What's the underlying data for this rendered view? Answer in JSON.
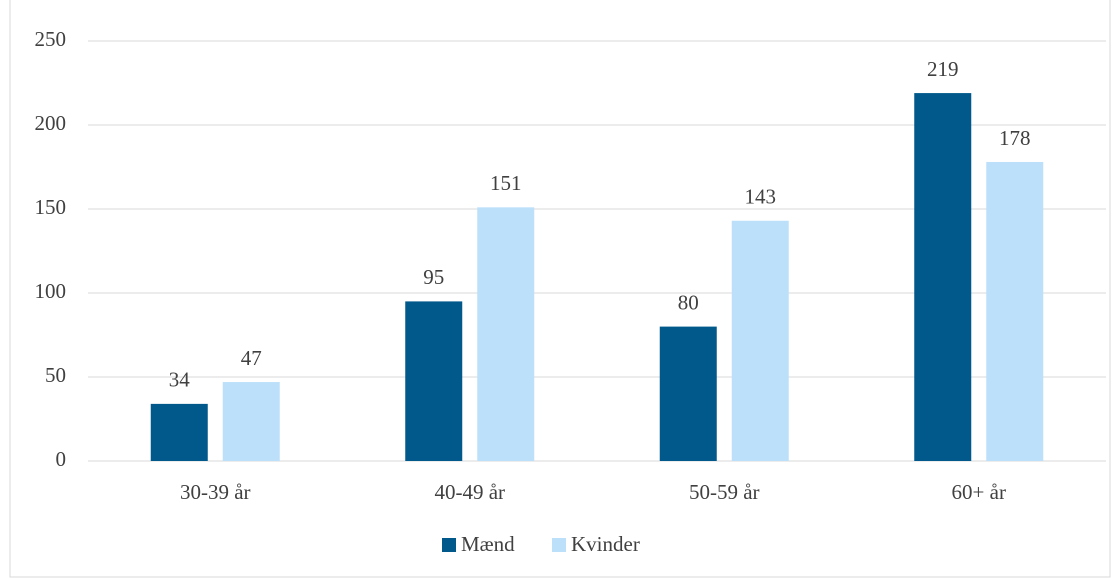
{
  "chart_data": {
    "type": "bar",
    "categories": [
      "30-39 år",
      "40-49 år",
      "50-59 år",
      "60+ år"
    ],
    "series": [
      {
        "name": "Mænd",
        "color": "#00598a",
        "values": [
          34,
          95,
          80,
          219
        ]
      },
      {
        "name": "Kvinder",
        "color": "#bde0fa",
        "values": [
          47,
          151,
          143,
          178
        ]
      }
    ],
    "ylim": [
      0,
      250
    ],
    "yticks": [
      0,
      50,
      100,
      150,
      200,
      250
    ],
    "grid": true,
    "legend": "bottom"
  }
}
